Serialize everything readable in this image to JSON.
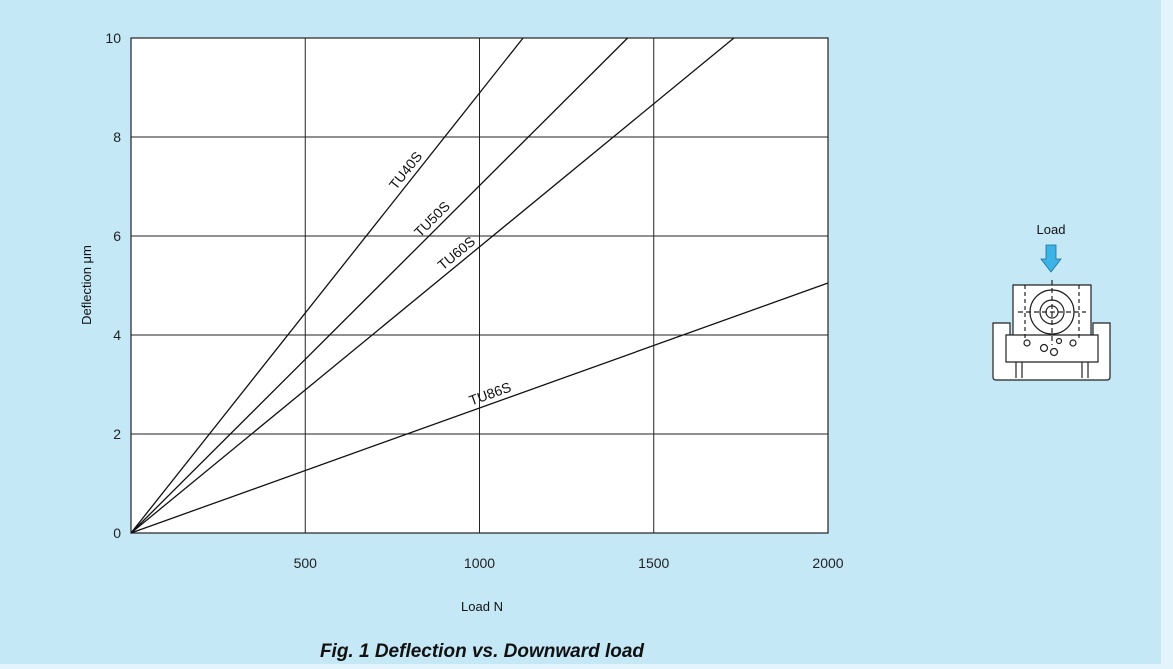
{
  "chart_data": {
    "type": "line",
    "title": "Fig. 1  Deflection vs. Downward load",
    "xlabel": "Load  N",
    "ylabel": "Deflection  μm",
    "xlim": [
      0,
      2000
    ],
    "ylim": [
      0,
      10
    ],
    "x_ticks": [
      500,
      1000,
      1500,
      2000
    ],
    "y_ticks": [
      0,
      2,
      4,
      6,
      8,
      10
    ],
    "grid": true,
    "series": [
      {
        "name": "TU40S",
        "x": [
          0,
          1125
        ],
        "y": [
          0,
          10
        ]
      },
      {
        "name": "TU50S",
        "x": [
          0,
          1425
        ],
        "y": [
          0,
          10
        ]
      },
      {
        "name": "TU60S",
        "x": [
          0,
          1730
        ],
        "y": [
          0,
          10
        ]
      },
      {
        "name": "TU86S",
        "x": [
          0,
          2000
        ],
        "y": [
          0,
          5.05
        ]
      }
    ]
  },
  "diagram": {
    "label": "Load",
    "arrow_color": "#3bb3e6"
  },
  "colors": {
    "background": "#c5e8f7",
    "plot_area": "#ffffff",
    "lines": "#111111"
  }
}
